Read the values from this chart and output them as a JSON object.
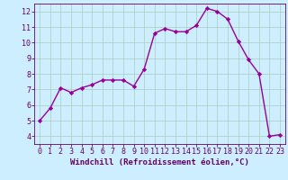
{
  "x": [
    0,
    1,
    2,
    3,
    4,
    5,
    6,
    7,
    8,
    9,
    10,
    11,
    12,
    13,
    14,
    15,
    16,
    17,
    18,
    19,
    20,
    21,
    22,
    23
  ],
  "y": [
    5.0,
    5.8,
    7.1,
    6.8,
    7.1,
    7.3,
    7.6,
    7.6,
    7.6,
    7.2,
    8.3,
    10.6,
    10.9,
    10.7,
    10.7,
    11.1,
    12.2,
    12.0,
    11.5,
    10.1,
    8.9,
    8.0,
    4.0,
    4.1
  ],
  "line_color": "#990099",
  "marker": "D",
  "marker_size": 2.2,
  "line_width": 1.0,
  "bg_color": "#cceeff",
  "grid_color": "#aaccbb",
  "xlabel": "Windchill (Refroidissement éolien,°C)",
  "xlabel_color": "#660066",
  "xlabel_fontsize": 6.5,
  "tick_color": "#660066",
  "tick_fontsize": 6.0,
  "ylim": [
    3.5,
    12.5
  ],
  "xlim": [
    -0.5,
    23.5
  ],
  "yticks": [
    4,
    5,
    6,
    7,
    8,
    9,
    10,
    11,
    12
  ],
  "xticks": [
    0,
    1,
    2,
    3,
    4,
    5,
    6,
    7,
    8,
    9,
    10,
    11,
    12,
    13,
    14,
    15,
    16,
    17,
    18,
    19,
    20,
    21,
    22,
    23
  ]
}
